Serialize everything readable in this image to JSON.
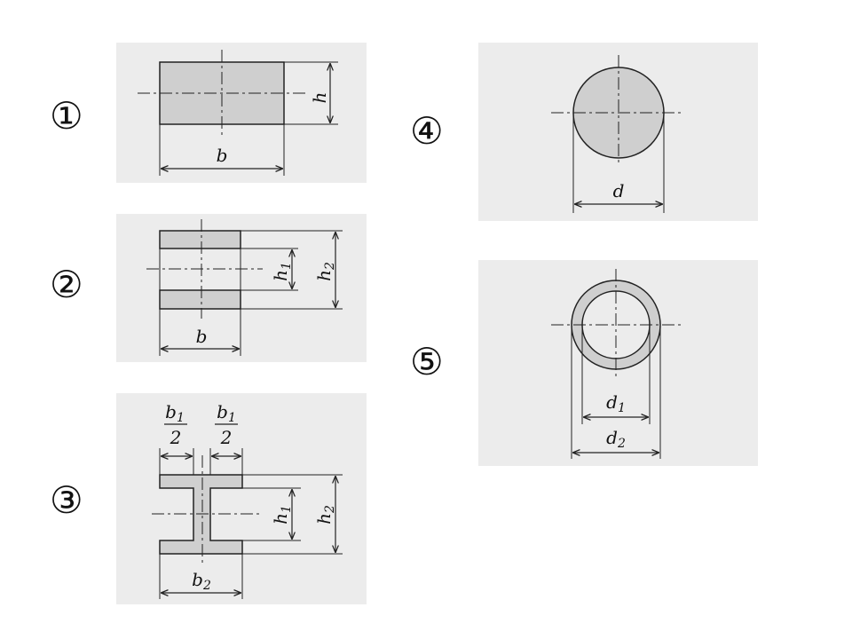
{
  "figures": [
    {
      "number": "①",
      "shape": "rectangle",
      "labels": {
        "width": "b",
        "height": "h"
      }
    },
    {
      "number": "②",
      "shape": "two-flange section",
      "labels": {
        "width": "b",
        "inner_height": "h",
        "inner_height_sub": "1",
        "outer_height": "h",
        "outer_height_sub": "2"
      }
    },
    {
      "number": "③",
      "shape": "I-section",
      "labels": {
        "half_flange_num": "b",
        "half_flange_num_sub": "1",
        "half_flange_den": "2",
        "flange_width": "b",
        "flange_width_sub": "2",
        "inner_height": "h",
        "inner_height_sub": "1",
        "outer_height": "h",
        "outer_height_sub": "2"
      }
    },
    {
      "number": "④",
      "shape": "solid circle",
      "labels": {
        "diameter": "d"
      }
    },
    {
      "number": "⑤",
      "shape": "hollow circle",
      "labels": {
        "inner_diameter": "d",
        "inner_diameter_sub": "1",
        "outer_diameter": "d",
        "outer_diameter_sub": "2"
      }
    }
  ],
  "colors": {
    "panel": "#ececec",
    "fill": "#cfcfcf",
    "line": "#222222"
  }
}
